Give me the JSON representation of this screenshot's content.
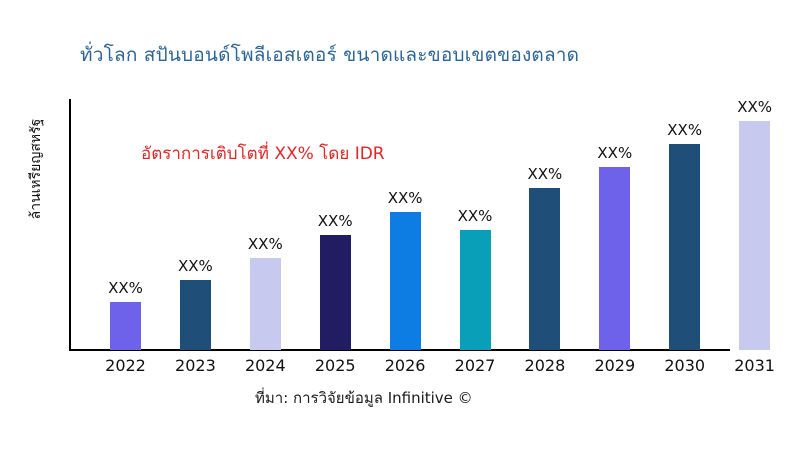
{
  "title": "ทั่วโลก สปันบอนด์โพลีเอสเตอร์ ขนาดและขอบเขตของตลาด",
  "annotation": "อัตราการเติบโตที่ XX% โดย IDR",
  "y_axis_label": "ล้านเหรียญสหรัฐ",
  "source": "ที่มา: การวิจัยข้อมูล Infinitive ©",
  "colors": {
    "title": "#2d6597",
    "annotation": "#e12626",
    "axis": "#000000",
    "text": "#111111",
    "background": "#ffffff"
  },
  "chart_data": {
    "type": "bar",
    "title": "ทั่วโลก สปันบอนด์โพลีเอสเตอร์ ขนาดและขอบเขตของตลาด",
    "xlabel": "",
    "ylabel": "ล้านเหรียญสหรัฐ",
    "categories": [
      "2022",
      "2023",
      "2024",
      "2025",
      "2026",
      "2027",
      "2028",
      "2029",
      "2030",
      "2031"
    ],
    "values": [
      48,
      70,
      92,
      115,
      138,
      120,
      162,
      183,
      206,
      229
    ],
    "values_unit": "relative bar height (numeric values masked in source image)",
    "bar_labels": [
      "XX%",
      "XX%",
      "XX%",
      "XX%",
      "XX%",
      "XX%",
      "XX%",
      "XX%",
      "XX%",
      "XX%"
    ],
    "bar_colors": [
      "#6e62ea",
      "#1f4e79",
      "#c7caee",
      "#221d62",
      "#0d7de4",
      "#0a9fb8",
      "#1f4e79",
      "#6e62ea",
      "#1f4e79",
      "#c7caee"
    ],
    "annotation": "อัตราการเติบโตที่ XX% โดย IDR",
    "source": "ที่มา: การวิจัยข้อมูล Infinitive ©",
    "legend": "none",
    "grid": false,
    "ylim": [
      0,
      252
    ]
  }
}
